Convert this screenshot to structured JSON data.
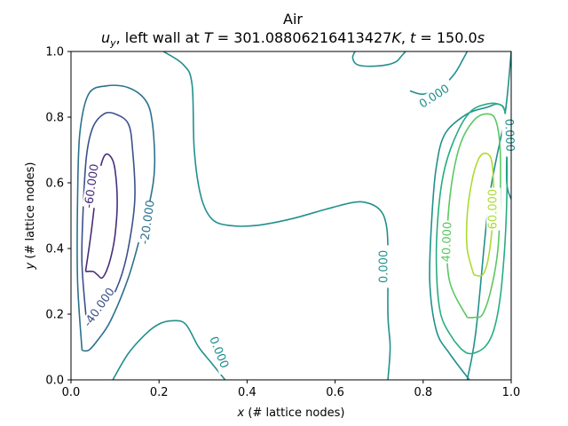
{
  "chart_data": {
    "type": "contour",
    "title_line1": "Air",
    "title_line2": {
      "var": "u",
      "sub": "y",
      "mid": ", left wall at ",
      "T_sym": "T",
      "T_val": " = 301.08806216413427",
      "K_sym": "K",
      "sep": ", ",
      "t_sym": "t",
      "t_val": " = 150.0",
      "s_sym": "s"
    },
    "xlabel": {
      "sym": "x",
      "rest": " (# lattice nodes)"
    },
    "ylabel": {
      "sym": "y",
      "rest": " (# lattice nodes)"
    },
    "xlim": [
      0,
      1
    ],
    "ylim": [
      0,
      1
    ],
    "xticks": [
      "0.0",
      "0.2",
      "0.4",
      "0.6",
      "0.8",
      "1.0"
    ],
    "yticks": [
      "0.0",
      "0.2",
      "0.4",
      "0.6",
      "0.8",
      "1.0"
    ],
    "levels": [
      {
        "value": -60,
        "color": "#472c7a"
      },
      {
        "value": -40,
        "color": "#3b518b"
      },
      {
        "value": -20,
        "color": "#2c718e"
      },
      {
        "value": 0,
        "color": "#21908d"
      },
      {
        "value": 20,
        "color": "#27ad81"
      },
      {
        "value": 40,
        "color": "#5cc863"
      },
      {
        "value": 60,
        "color": "#aadc32"
      }
    ],
    "contours": [
      {
        "level": -60,
        "points": [
          [
            0.033,
            0.33
          ],
          [
            0.045,
            0.44
          ],
          [
            0.06,
            0.6
          ],
          [
            0.075,
            0.68
          ],
          [
            0.09,
            0.68
          ],
          [
            0.1,
            0.64
          ],
          [
            0.105,
            0.54
          ],
          [
            0.1,
            0.44
          ],
          [
            0.09,
            0.37
          ],
          [
            0.08,
            0.33
          ],
          [
            0.07,
            0.31
          ],
          [
            0.06,
            0.32
          ],
          [
            0.05,
            0.33
          ],
          [
            0.033,
            0.33
          ]
        ]
      },
      {
        "level": -40,
        "points": [
          [
            0.035,
            0.18
          ],
          [
            0.025,
            0.35
          ],
          [
            0.027,
            0.5
          ],
          [
            0.035,
            0.68
          ],
          [
            0.05,
            0.77
          ],
          [
            0.075,
            0.81
          ],
          [
            0.1,
            0.81
          ],
          [
            0.13,
            0.78
          ],
          [
            0.14,
            0.7
          ],
          [
            0.145,
            0.55
          ],
          [
            0.13,
            0.4
          ],
          [
            0.11,
            0.3
          ],
          [
            0.08,
            0.22
          ],
          [
            0.05,
            0.18
          ],
          [
            0.035,
            0.18
          ]
        ]
      },
      {
        "level": -20,
        "points": [
          [
            0.025,
            0.09
          ],
          [
            0.015,
            0.3
          ],
          [
            0.015,
            0.55
          ],
          [
            0.02,
            0.75
          ],
          [
            0.04,
            0.87
          ],
          [
            0.08,
            0.895
          ],
          [
            0.13,
            0.89
          ],
          [
            0.17,
            0.85
          ],
          [
            0.185,
            0.78
          ],
          [
            0.19,
            0.65
          ],
          [
            0.18,
            0.55
          ],
          [
            0.16,
            0.45
          ],
          [
            0.13,
            0.31
          ],
          [
            0.09,
            0.18
          ],
          [
            0.06,
            0.12
          ],
          [
            0.04,
            0.09
          ],
          [
            0.025,
            0.09
          ]
        ]
      },
      {
        "level": 0,
        "points": [
          [
            0.21,
            1.0
          ],
          [
            0.255,
            0.96
          ],
          [
            0.275,
            0.9
          ],
          [
            0.28,
            0.7
          ],
          [
            0.295,
            0.56
          ],
          [
            0.32,
            0.49
          ],
          [
            0.36,
            0.47
          ],
          [
            0.42,
            0.47
          ],
          [
            0.5,
            0.49
          ],
          [
            0.58,
            0.52
          ],
          [
            0.64,
            0.54
          ],
          [
            0.67,
            0.54
          ],
          [
            0.7,
            0.52
          ],
          [
            0.715,
            0.48
          ],
          [
            0.72,
            0.4
          ],
          [
            0.72,
            0.2
          ],
          [
            0.725,
            0.1
          ],
          [
            0.72,
            0.0
          ]
        ]
      },
      {
        "level": 0,
        "points": [
          [
            0.095,
            0.0
          ],
          [
            0.13,
            0.08
          ],
          [
            0.17,
            0.14
          ],
          [
            0.2,
            0.17
          ],
          [
            0.23,
            0.18
          ],
          [
            0.26,
            0.17
          ],
          [
            0.29,
            0.1
          ],
          [
            0.32,
            0.05
          ],
          [
            0.35,
            0.0
          ]
        ]
      },
      {
        "level": 0,
        "points": [
          [
            0.905,
            0.0
          ],
          [
            0.86,
            0.08
          ],
          [
            0.83,
            0.15
          ],
          [
            0.815,
            0.3
          ],
          [
            0.82,
            0.5
          ],
          [
            0.83,
            0.65
          ],
          [
            0.85,
            0.75
          ],
          [
            0.9,
            0.81
          ],
          [
            0.945,
            0.83
          ],
          [
            0.97,
            0.84
          ],
          [
            0.985,
            0.82
          ],
          [
            0.99,
            0.75
          ],
          [
            0.99,
            0.6
          ],
          [
            1.0,
            0.55
          ]
        ]
      },
      {
        "level": 0,
        "points": [
          [
            0.9,
            0.0
          ],
          [
            0.92,
            0.15
          ],
          [
            0.95,
            0.55
          ],
          [
            0.985,
            0.8
          ],
          [
            1.0,
            1.0
          ]
        ]
      },
      {
        "level": 0,
        "points": [
          [
            0.645,
            1.0
          ],
          [
            0.64,
            0.98
          ],
          [
            0.65,
            0.96
          ],
          [
            0.68,
            0.955
          ],
          [
            0.72,
            0.96
          ],
          [
            0.74,
            0.97
          ],
          [
            0.75,
            0.985
          ],
          [
            0.76,
            1.0
          ]
        ]
      },
      {
        "level": 0,
        "points": [
          [
            0.9,
            1.0
          ],
          [
            0.89,
            0.975
          ],
          [
            0.87,
            0.93
          ],
          [
            0.84,
            0.89
          ],
          [
            0.8,
            0.87
          ],
          [
            0.77,
            0.88
          ]
        ]
      },
      {
        "level": 20,
        "points": [
          [
            0.87,
            0.12
          ],
          [
            0.84,
            0.2
          ],
          [
            0.83,
            0.35
          ],
          [
            0.835,
            0.52
          ],
          [
            0.85,
            0.65
          ],
          [
            0.88,
            0.76
          ],
          [
            0.91,
            0.82
          ],
          [
            0.945,
            0.84
          ],
          [
            0.97,
            0.84
          ],
          [
            0.985,
            0.82
          ],
          [
            0.99,
            0.72
          ],
          [
            0.99,
            0.55
          ],
          [
            0.985,
            0.4
          ],
          [
            0.975,
            0.25
          ],
          [
            0.96,
            0.15
          ],
          [
            0.94,
            0.1
          ],
          [
            0.91,
            0.08
          ],
          [
            0.89,
            0.09
          ],
          [
            0.87,
            0.12
          ]
        ]
      },
      {
        "level": 40,
        "points": [
          [
            0.9,
            0.19
          ],
          [
            0.86,
            0.3
          ],
          [
            0.855,
            0.45
          ],
          [
            0.865,
            0.6
          ],
          [
            0.885,
            0.72
          ],
          [
            0.915,
            0.79
          ],
          [
            0.945,
            0.81
          ],
          [
            0.965,
            0.79
          ],
          [
            0.975,
            0.7
          ],
          [
            0.975,
            0.55
          ],
          [
            0.97,
            0.4
          ],
          [
            0.955,
            0.28
          ],
          [
            0.935,
            0.2
          ],
          [
            0.915,
            0.19
          ],
          [
            0.9,
            0.19
          ]
        ]
      },
      {
        "level": 60,
        "points": [
          [
            0.915,
            0.32
          ],
          [
            0.9,
            0.4
          ],
          [
            0.9,
            0.5
          ],
          [
            0.91,
            0.6
          ],
          [
            0.925,
            0.67
          ],
          [
            0.94,
            0.69
          ],
          [
            0.955,
            0.67
          ],
          [
            0.96,
            0.58
          ],
          [
            0.957,
            0.47
          ],
          [
            0.948,
            0.37
          ],
          [
            0.935,
            0.32
          ],
          [
            0.915,
            0.32
          ]
        ]
      }
    ],
    "contour_labels": [
      {
        "text": "-60.000",
        "level": -60,
        "x": 0.048,
        "y": 0.59,
        "angle": -82
      },
      {
        "text": "-40.000",
        "level": -40,
        "x": 0.065,
        "y": 0.22,
        "angle": -55
      },
      {
        "text": "-20.000",
        "level": -20,
        "x": 0.175,
        "y": 0.48,
        "angle": -82
      },
      {
        "text": "0.000",
        "level": 0,
        "x": 0.335,
        "y": 0.083,
        "angle": 68
      },
      {
        "text": "0.000",
        "level": 0,
        "x": 0.712,
        "y": 0.345,
        "angle": -90
      },
      {
        "text": "0.000",
        "level": 0,
        "x": 0.826,
        "y": 0.862,
        "angle": -33
      },
      {
        "text": "0.000",
        "level": 0,
        "x": 0.995,
        "y": 0.745,
        "angle": 88
      },
      {
        "text": "40.000",
        "level": 40,
        "x": 0.855,
        "y": 0.42,
        "angle": -88
      },
      {
        "text": "60.000",
        "level": 60,
        "x": 0.96,
        "y": 0.52,
        "angle": -90
      }
    ]
  }
}
